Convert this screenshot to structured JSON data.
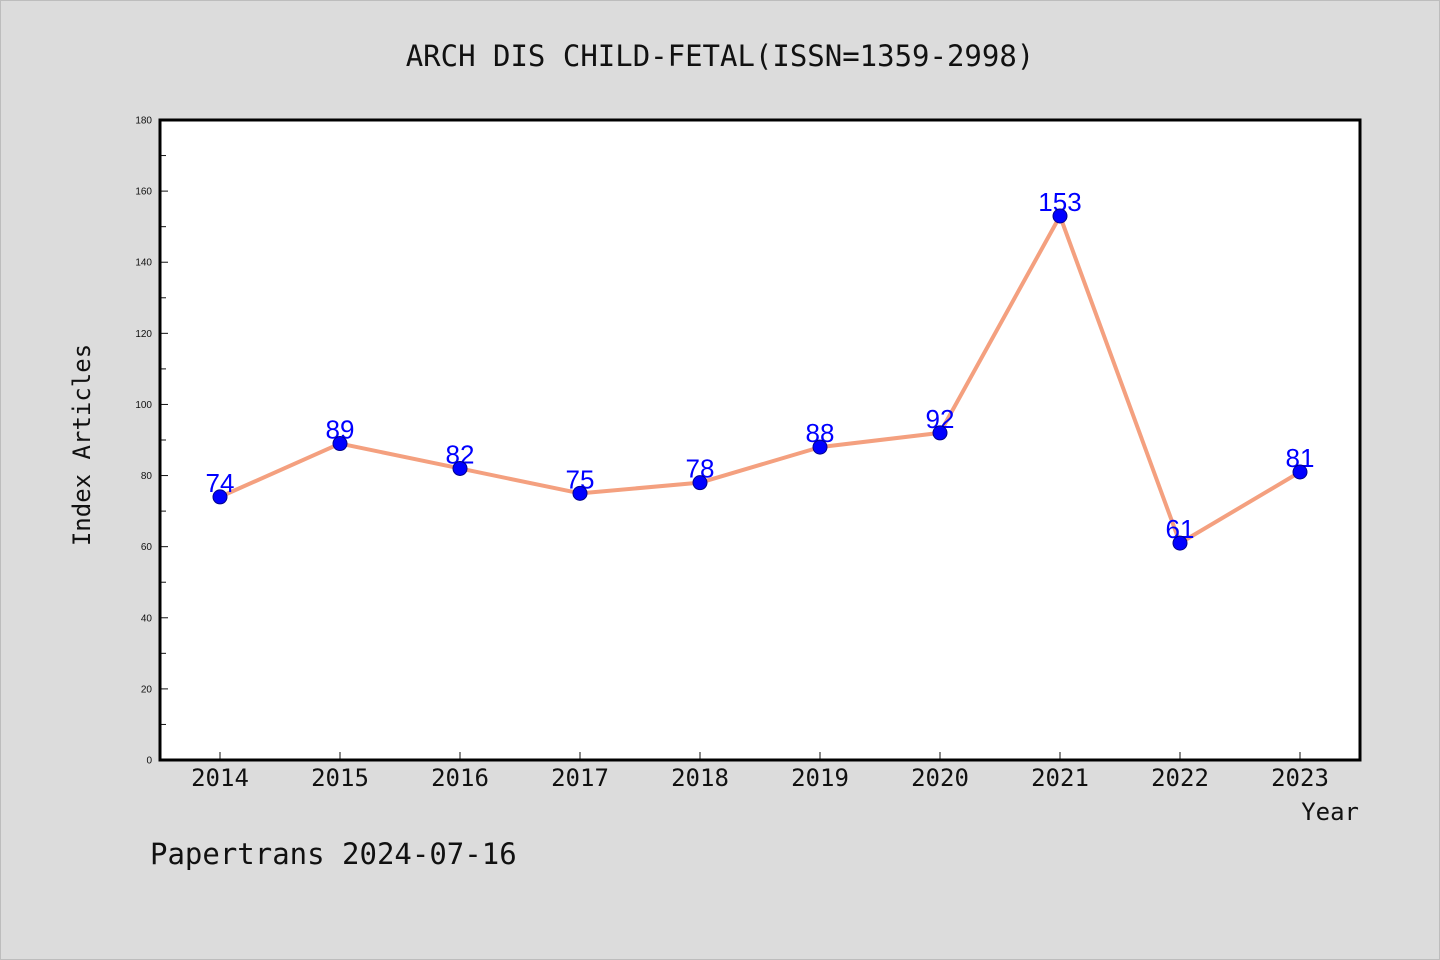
{
  "chart_data": {
    "type": "line",
    "title": "ARCH DIS CHILD-FETAL(ISSN=1359-2998)",
    "xlabel": "Year",
    "ylabel": "Index Articles",
    "categories": [
      "2014",
      "2015",
      "2016",
      "2017",
      "2018",
      "2019",
      "2020",
      "2021",
      "2022",
      "2023"
    ],
    "values": [
      74,
      89,
      82,
      75,
      78,
      88,
      92,
      153,
      61,
      81
    ],
    "data_labels": [
      "74",
      "89",
      "82",
      "75",
      "78",
      "88",
      "92",
      "153",
      "61",
      "81"
    ],
    "ylim": [
      0,
      180
    ],
    "yticks": [
      "0",
      "20",
      "40",
      "60",
      "80",
      "100",
      "120",
      "140",
      "160",
      "180"
    ],
    "grid": false,
    "legend": "none"
  },
  "footer": {
    "credit": "Papertrans 2024-07-16"
  },
  "colors": {
    "background": "#dcdcdc",
    "plot_area": "#ffffff",
    "line": "#f4a07f",
    "marker": "#0000ff",
    "data_label": "#0000ff",
    "text": "#111111"
  }
}
